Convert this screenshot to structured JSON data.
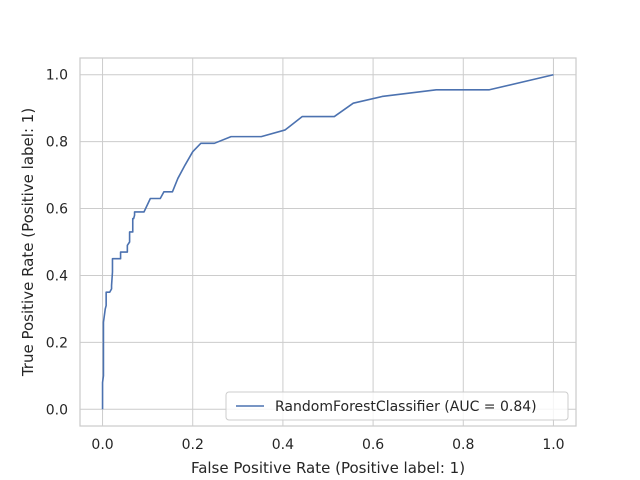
{
  "chart_data": {
    "type": "line",
    "title": "",
    "xlabel": "False Positive Rate (Positive label: 1)",
    "ylabel": "True Positive Rate (Positive label: 1)",
    "xlim": [
      -0.05,
      1.05
    ],
    "ylim": [
      -0.05,
      1.05
    ],
    "xticks": [
      0.0,
      0.2,
      0.4,
      0.6,
      0.8,
      1.0
    ],
    "yticks": [
      0.0,
      0.2,
      0.4,
      0.6,
      0.8,
      1.0
    ],
    "xtick_labels": [
      "0.0",
      "0.2",
      "0.4",
      "0.6",
      "0.8",
      "1.0"
    ],
    "ytick_labels": [
      "0.0",
      "0.2",
      "0.4",
      "0.6",
      "0.8",
      "1.0"
    ],
    "grid": true,
    "legend_position": "lower-right",
    "series_color": "#4c72b0",
    "series": [
      {
        "name": "RandomForestClassifier (AUC = 0.84)",
        "x": [
          0.0,
          0.0,
          0.002,
          0.002,
          0.004,
          0.006,
          0.008,
          0.008,
          0.016,
          0.02,
          0.02,
          0.022,
          0.022,
          0.04,
          0.04,
          0.055,
          0.055,
          0.06,
          0.06,
          0.067,
          0.067,
          0.069,
          0.071,
          0.071,
          0.092,
          0.106,
          0.128,
          0.136,
          0.155,
          0.167,
          0.183,
          0.2,
          0.218,
          0.248,
          0.285,
          0.352,
          0.405,
          0.443,
          0.514,
          0.556,
          0.62,
          0.74,
          0.858,
          1.0
        ],
        "y": [
          0.0,
          0.08,
          0.1,
          0.26,
          0.28,
          0.3,
          0.31,
          0.35,
          0.35,
          0.36,
          0.37,
          0.41,
          0.45,
          0.45,
          0.47,
          0.47,
          0.49,
          0.5,
          0.53,
          0.53,
          0.57,
          0.57,
          0.58,
          0.59,
          0.59,
          0.63,
          0.63,
          0.65,
          0.65,
          0.69,
          0.73,
          0.77,
          0.795,
          0.795,
          0.815,
          0.815,
          0.835,
          0.875,
          0.875,
          0.915,
          0.935,
          0.955,
          0.955,
          1.0
        ]
      }
    ]
  }
}
